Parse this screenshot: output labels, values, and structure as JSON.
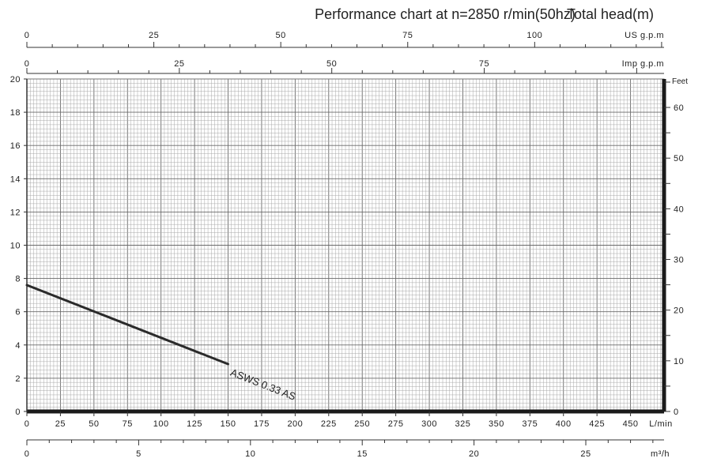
{
  "chart_data": {
    "type": "line",
    "title": "Performance chart at n=2850 r/min(50hz)",
    "ylabel": "Total head(m)",
    "x_primary": {
      "unit": "L/min",
      "range": [
        0,
        475
      ],
      "ticks": [
        "0",
        "25",
        "50",
        "75",
        "100",
        "125",
        "150",
        "175",
        "200",
        "225",
        "250",
        "275",
        "300",
        "325",
        "350",
        "375",
        "400",
        "425",
        "450"
      ]
    },
    "x_m3h": {
      "unit": "m³/h",
      "range": [
        0,
        28.5
      ],
      "ticks": [
        "0",
        "5",
        "10",
        "15",
        "20",
        "25"
      ]
    },
    "x_usgpm": {
      "unit": "US g.p.m",
      "range": [
        0,
        125.48
      ],
      "ticks": [
        "0",
        "25",
        "50",
        "75",
        "100"
      ]
    },
    "x_impgpm": {
      "unit": "Imp g.p.m",
      "range": [
        0,
        104.49
      ],
      "ticks": [
        "0",
        "25",
        "50",
        "75"
      ]
    },
    "y_primary": {
      "unit": "m",
      "range": [
        0,
        20
      ],
      "ticks": [
        "0",
        "2",
        "4",
        "6",
        "8",
        "10",
        "12",
        "14",
        "16",
        "18",
        "20"
      ]
    },
    "y_feet": {
      "unit": "Feet",
      "range": [
        0,
        65.62
      ],
      "ticks": [
        "0",
        "10",
        "20",
        "30",
        "40",
        "50",
        "60"
      ]
    },
    "grid": true,
    "series": [
      {
        "name": "ASWS 0.33 AS",
        "color": "#2a2a2a",
        "points": [
          [
            0,
            7.6
          ],
          [
            150,
            2.85
          ]
        ]
      }
    ]
  }
}
